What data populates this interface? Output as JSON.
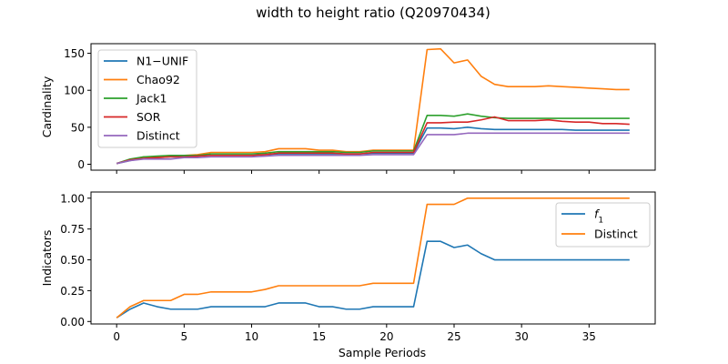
{
  "figure": {
    "suptitle": "width to height ratio (Q20970434)"
  },
  "chart_data": [
    {
      "type": "line",
      "xlabel": "",
      "ylabel": "Cardinality",
      "xlim": [
        -1.9,
        39.9
      ],
      "ylim": [
        -8,
        163
      ],
      "xticks": [
        0,
        5,
        10,
        15,
        20,
        25,
        30,
        35
      ],
      "xtick_labels_visible": false,
      "yticks": [
        0,
        50,
        100,
        150
      ],
      "ytick_labels": [
        "0",
        "50",
        "100",
        "150"
      ],
      "legend_position": "upper-left",
      "grid": false,
      "x": [
        0,
        1,
        2,
        3,
        4,
        5,
        6,
        7,
        8,
        9,
        10,
        11,
        12,
        13,
        14,
        15,
        16,
        17,
        18,
        19,
        20,
        21,
        22,
        23,
        24,
        25,
        26,
        27,
        28,
        29,
        30,
        31,
        32,
        33,
        34,
        35,
        36,
        37,
        38
      ],
      "series": [
        {
          "name": "N1−UNIF",
          "color": "#1f77b4",
          "values": [
            1,
            5,
            8,
            9,
            10,
            10,
            11,
            12,
            12,
            12,
            12,
            13,
            14,
            14,
            14,
            14,
            14,
            14,
            14,
            15,
            15,
            15,
            15,
            49,
            49,
            48,
            50,
            48,
            47,
            47,
            47,
            47,
            47,
            47,
            46,
            46,
            46,
            46,
            46
          ]
        },
        {
          "name": "Chao92",
          "color": "#ff7f0e",
          "values": [
            1,
            6,
            10,
            10,
            12,
            12,
            13,
            16,
            16,
            16,
            16,
            17,
            21,
            21,
            21,
            19,
            19,
            17,
            17,
            19,
            19,
            19,
            19,
            155,
            156,
            137,
            141,
            119,
            108,
            105,
            105,
            105,
            106,
            105,
            104,
            103,
            102,
            101,
            101
          ]
        },
        {
          "name": "Jack1",
          "color": "#2ca02c",
          "values": [
            1,
            7,
            10,
            11,
            12,
            12,
            12,
            14,
            14,
            14,
            14,
            15,
            17,
            17,
            17,
            17,
            17,
            16,
            16,
            18,
            18,
            18,
            18,
            66,
            66,
            65,
            68,
            65,
            63,
            62,
            62,
            62,
            62,
            62,
            62,
            62,
            62,
            62,
            62
          ]
        },
        {
          "name": "SOR",
          "color": "#d62728",
          "values": [
            1,
            6,
            8,
            9,
            10,
            10,
            11,
            12,
            12,
            12,
            12,
            13,
            15,
            15,
            15,
            15,
            15,
            14,
            14,
            16,
            16,
            16,
            16,
            56,
            56,
            57,
            57,
            60,
            64,
            59,
            59,
            59,
            60,
            58,
            57,
            57,
            55,
            55,
            54
          ]
        },
        {
          "name": "Distinct",
          "color": "#9467bd",
          "values": [
            1,
            5,
            7,
            7,
            7,
            9,
            9,
            10,
            10,
            10,
            10,
            11,
            12,
            12,
            12,
            12,
            12,
            12,
            12,
            13,
            13,
            13,
            13,
            40,
            40,
            40,
            42,
            42,
            42,
            42,
            42,
            42,
            42,
            42,
            42,
            42,
            42,
            42,
            42
          ]
        }
      ]
    },
    {
      "type": "line",
      "xlabel": "Sample Periods",
      "ylabel": "Indicators",
      "xlim": [
        -1.9,
        39.9
      ],
      "ylim": [
        -0.02,
        1.05
      ],
      "xticks": [
        0,
        5,
        10,
        15,
        20,
        25,
        30,
        35
      ],
      "xtick_labels": [
        "0",
        "5",
        "10",
        "15",
        "20",
        "25",
        "30",
        "35"
      ],
      "yticks": [
        0,
        0.25,
        0.5,
        0.75,
        1.0
      ],
      "ytick_labels": [
        "0.00",
        "0.25",
        "0.50",
        "0.75",
        "1.00"
      ],
      "legend_position": "upper-right",
      "grid": false,
      "x": [
        0,
        1,
        2,
        3,
        4,
        5,
        6,
        7,
        8,
        9,
        10,
        11,
        12,
        13,
        14,
        15,
        16,
        17,
        18,
        19,
        20,
        21,
        22,
        23,
        24,
        25,
        26,
        27,
        28,
        29,
        30,
        31,
        32,
        33,
        34,
        35,
        36,
        37,
        38
      ],
      "series": [
        {
          "name": "f",
          "name_subscript": "1",
          "color": "#1f77b4",
          "values": [
            0.03,
            0.1,
            0.15,
            0.12,
            0.1,
            0.1,
            0.1,
            0.12,
            0.12,
            0.12,
            0.12,
            0.12,
            0.15,
            0.15,
            0.15,
            0.12,
            0.12,
            0.1,
            0.1,
            0.12,
            0.12,
            0.12,
            0.12,
            0.65,
            0.65,
            0.6,
            0.62,
            0.55,
            0.5,
            0.5,
            0.5,
            0.5,
            0.5,
            0.5,
            0.5,
            0.5,
            0.5,
            0.5,
            0.5
          ]
        },
        {
          "name": "Distinct",
          "color": "#ff7f0e",
          "values": [
            0.03,
            0.12,
            0.17,
            0.17,
            0.17,
            0.22,
            0.22,
            0.24,
            0.24,
            0.24,
            0.24,
            0.26,
            0.29,
            0.29,
            0.29,
            0.29,
            0.29,
            0.29,
            0.29,
            0.31,
            0.31,
            0.31,
            0.31,
            0.95,
            0.95,
            0.95,
            1.0,
            1.0,
            1.0,
            1.0,
            1.0,
            1.0,
            1.0,
            1.0,
            1.0,
            1.0,
            1.0,
            1.0,
            1.0
          ]
        }
      ]
    }
  ]
}
